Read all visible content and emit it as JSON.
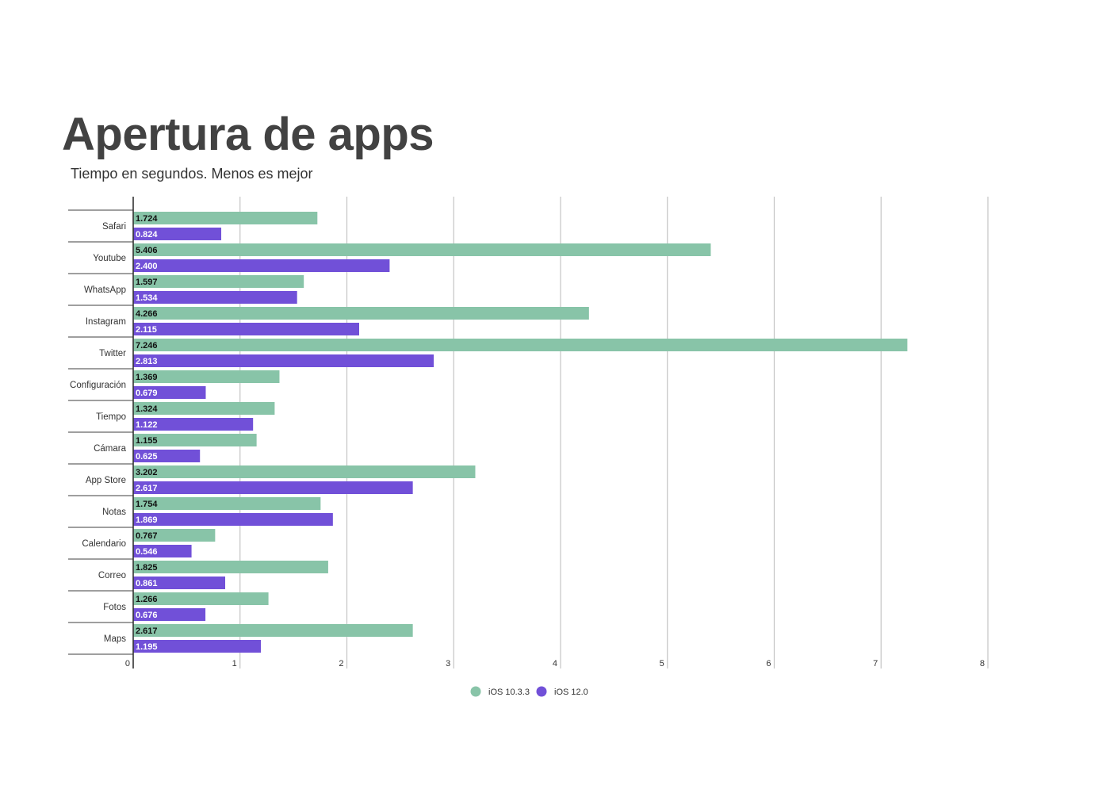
{
  "chart_data": {
    "type": "bar",
    "orientation": "horizontal",
    "title": "Apertura de apps",
    "subtitle": "Tiempo en segundos. Menos es mejor",
    "categories": [
      "Safari",
      "Youtube",
      "WhatsApp",
      "Instagram",
      "Twitter",
      "Configuración",
      "Tiempo",
      "Cámara",
      "App Store",
      "Notas",
      "Calendario",
      "Correo",
      "Fotos",
      "Maps"
    ],
    "series": [
      {
        "name": "iOS 10.3.3",
        "color": "#88c4a8",
        "label_color": "#111111",
        "values": [
          1.724,
          5.406,
          1.597,
          4.266,
          7.246,
          1.369,
          1.324,
          1.155,
          3.202,
          1.754,
          0.767,
          1.825,
          1.266,
          2.617
        ]
      },
      {
        "name": "iOS 12.0",
        "color": "#7150d8",
        "label_color": "#ffffff",
        "values": [
          0.824,
          2.4,
          1.534,
          2.115,
          2.813,
          0.679,
          1.122,
          0.625,
          2.617,
          1.869,
          0.546,
          0.861,
          0.676,
          1.195
        ]
      }
    ],
    "xlim": [
      0,
      8
    ],
    "xticks": [
      0,
      1,
      2,
      3,
      4,
      5,
      6,
      7,
      8
    ],
    "grid": true,
    "legend": "bottom",
    "data_labels": true
  }
}
